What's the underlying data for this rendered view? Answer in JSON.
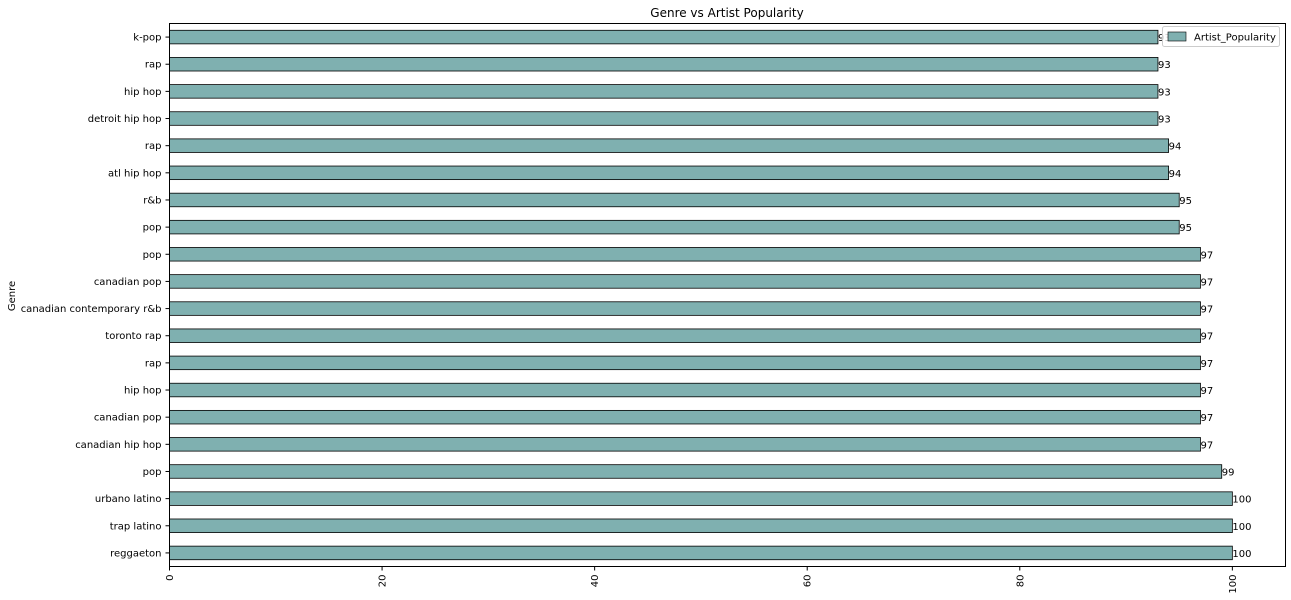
{
  "chart_data": {
    "type": "bar",
    "orientation": "horizontal",
    "title": "Genre vs Artist Popularity",
    "ylabel": "Genre",
    "xlabel": "",
    "xlim": [
      0,
      105
    ],
    "xticks": [
      "0",
      "20",
      "40",
      "60",
      "80",
      "100"
    ],
    "xtick_values": [
      0,
      20,
      40,
      60,
      80,
      100
    ],
    "grid": false,
    "legend_position": "top-right",
    "bar_color": "#7fb0b0",
    "series": [
      {
        "name": "Artist_Popularity",
        "values": [
          93,
          93,
          93,
          93,
          94,
          94,
          95,
          95,
          97,
          97,
          97,
          97,
          97,
          97,
          97,
          97,
          99,
          100,
          100,
          100
        ]
      }
    ],
    "categories": [
      "k-pop",
      "rap",
      "hip hop",
      "detroit hip hop",
      "rap",
      "atl hip hop",
      "r&b",
      "pop",
      "pop",
      "canadian pop",
      "canadian contemporary r&b",
      "toronto rap",
      "rap",
      "hip hop",
      "canadian pop",
      "canadian hip hop",
      "pop",
      "urbano latino",
      "trap latino",
      "reggaeton"
    ],
    "data_labels": [
      "93",
      "93",
      "93",
      "93",
      "94",
      "94",
      "95",
      "95",
      "97",
      "97",
      "97",
      "97",
      "97",
      "97",
      "97",
      "97",
      "99",
      "100",
      "100",
      "100"
    ]
  }
}
